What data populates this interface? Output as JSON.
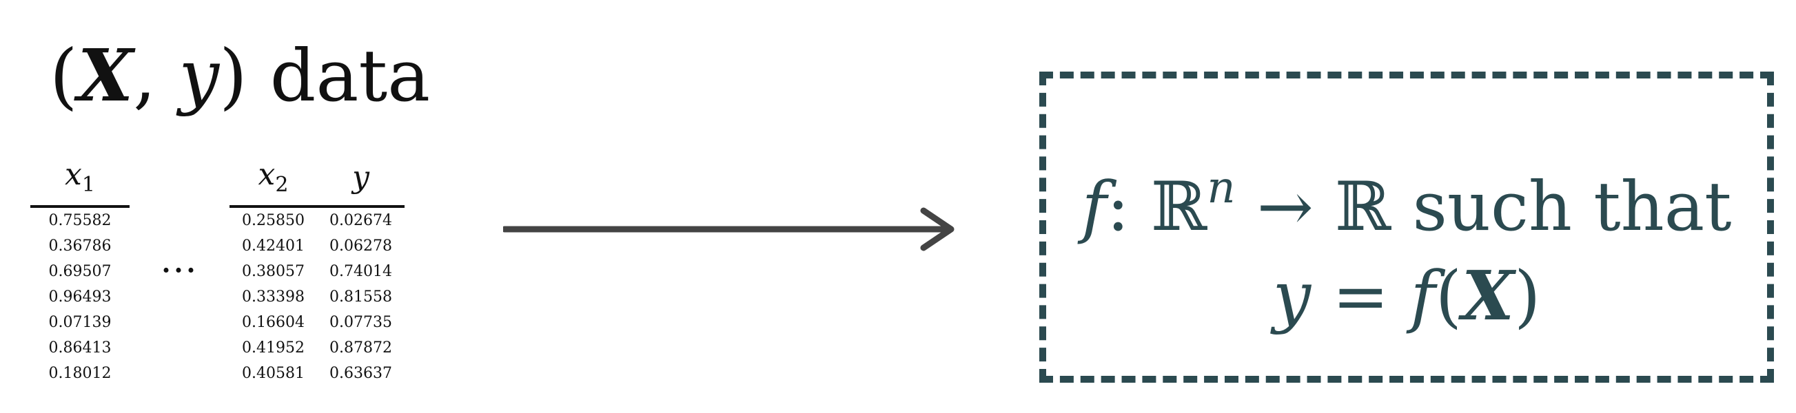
{
  "title": {
    "open": "(",
    "X": "X",
    "comma": ", ",
    "y": "y",
    "close": ")",
    "word": " data"
  },
  "table_left": {
    "header": {
      "var": "x",
      "sub": "1"
    },
    "values": [
      "0.75582",
      "0.36786",
      "0.69507",
      "0.96493",
      "0.07139",
      "0.86413",
      "0.18012"
    ]
  },
  "ellipsis": "…",
  "table_right": {
    "headers": [
      {
        "var": "x",
        "sub": "2"
      },
      {
        "var": "y",
        "sub": ""
      }
    ],
    "rows": [
      [
        "0.25850",
        "0.02674"
      ],
      [
        "0.42401",
        "0.06278"
      ],
      [
        "0.38057",
        "0.74014"
      ],
      [
        "0.33398",
        "0.81558"
      ],
      [
        "0.16604",
        "0.07735"
      ],
      [
        "0.41952",
        "0.87872"
      ],
      [
        "0.40581",
        "0.63637"
      ]
    ]
  },
  "result": {
    "line1": {
      "f": "f",
      "colon": ": ",
      "domain": "ℝ",
      "exp": "n",
      "arrow": " → ",
      "codomain": "ℝ",
      "text": " such that"
    },
    "line2": {
      "y": "y",
      "eq": " = ",
      "f": "f",
      "open": "(",
      "X": "X",
      "close": ")"
    }
  },
  "colors": {
    "ink": "#111111",
    "arrow": "#444444",
    "box": "#2b4a50"
  }
}
